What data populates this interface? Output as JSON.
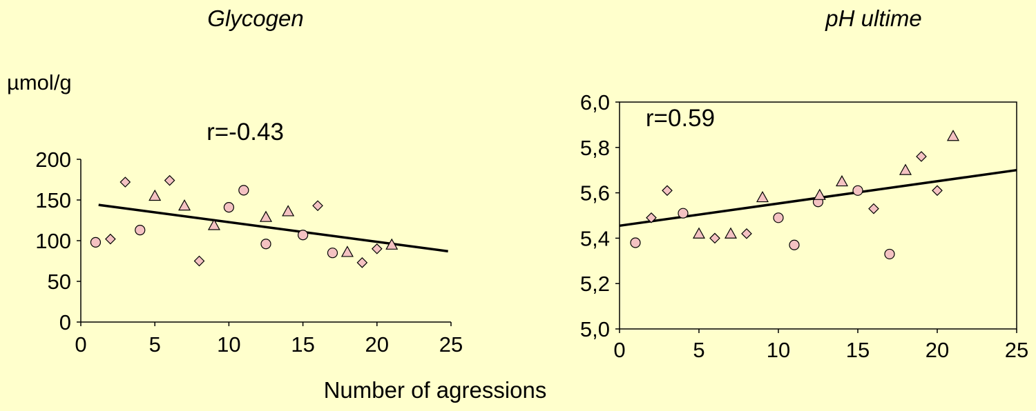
{
  "shared_xlabel": "Number of agressions",
  "chart_data": [
    {
      "type": "scatter",
      "title": "Glycogen",
      "ylabel": "µmol/g",
      "annotation": "r=-0.43",
      "xlim": [
        0,
        25
      ],
      "ylim": [
        0,
        200
      ],
      "xticks": [
        "0",
        "5",
        "10",
        "15",
        "20",
        "25"
      ],
      "yticks": [
        "0",
        "50",
        "100",
        "150",
        "200"
      ],
      "marker_color": "#f4c2c2",
      "points": [
        {
          "x": 1,
          "y": 98,
          "marker": "circle"
        },
        {
          "x": 2,
          "y": 102,
          "marker": "diamond"
        },
        {
          "x": 3,
          "y": 172,
          "marker": "diamond"
        },
        {
          "x": 4,
          "y": 113,
          "marker": "circle"
        },
        {
          "x": 5,
          "y": 155,
          "marker": "triangle"
        },
        {
          "x": 6,
          "y": 174,
          "marker": "diamond"
        },
        {
          "x": 7,
          "y": 143,
          "marker": "triangle"
        },
        {
          "x": 8,
          "y": 75,
          "marker": "diamond"
        },
        {
          "x": 9,
          "y": 119,
          "marker": "triangle"
        },
        {
          "x": 10,
          "y": 141,
          "marker": "circle"
        },
        {
          "x": 11,
          "y": 162,
          "marker": "circle"
        },
        {
          "x": 12.5,
          "y": 96,
          "marker": "circle"
        },
        {
          "x": 12.5,
          "y": 129,
          "marker": "triangle"
        },
        {
          "x": 14,
          "y": 136,
          "marker": "triangle"
        },
        {
          "x": 15,
          "y": 107,
          "marker": "circle"
        },
        {
          "x": 16,
          "y": 143,
          "marker": "diamond"
        },
        {
          "x": 17,
          "y": 85,
          "marker": "circle"
        },
        {
          "x": 18,
          "y": 86,
          "marker": "triangle"
        },
        {
          "x": 19,
          "y": 73,
          "marker": "diamond"
        },
        {
          "x": 20,
          "y": 90,
          "marker": "diamond"
        },
        {
          "x": 21,
          "y": 95,
          "marker": "triangle"
        }
      ],
      "trendline": {
        "x1": 1.2,
        "y1": 144,
        "x2": 24.8,
        "y2": 87
      }
    },
    {
      "type": "scatter",
      "title": "pH ultime",
      "ylabel": "",
      "annotation": "r=0.59",
      "xlim": [
        0,
        25
      ],
      "ylim": [
        5.0,
        6.0
      ],
      "xticks": [
        "0",
        "5",
        "10",
        "15",
        "20",
        "25"
      ],
      "yticks": [
        "5,0",
        "5,2",
        "5,4",
        "5,6",
        "5,8",
        "6,0"
      ],
      "marker_color": "#f4c2c2",
      "points": [
        {
          "x": 1,
          "y": 5.38,
          "marker": "circle"
        },
        {
          "x": 2,
          "y": 5.49,
          "marker": "diamond"
        },
        {
          "x": 3,
          "y": 5.61,
          "marker": "diamond"
        },
        {
          "x": 4,
          "y": 5.51,
          "marker": "circle"
        },
        {
          "x": 5,
          "y": 5.42,
          "marker": "triangle"
        },
        {
          "x": 6,
          "y": 5.4,
          "marker": "diamond"
        },
        {
          "x": 7,
          "y": 5.42,
          "marker": "triangle"
        },
        {
          "x": 8,
          "y": 5.42,
          "marker": "diamond"
        },
        {
          "x": 9,
          "y": 5.58,
          "marker": "triangle"
        },
        {
          "x": 10,
          "y": 5.49,
          "marker": "circle"
        },
        {
          "x": 11,
          "y": 5.37,
          "marker": "circle"
        },
        {
          "x": 12.5,
          "y": 5.56,
          "marker": "circle"
        },
        {
          "x": 12.6,
          "y": 5.59,
          "marker": "triangle"
        },
        {
          "x": 14,
          "y": 5.65,
          "marker": "triangle"
        },
        {
          "x": 15,
          "y": 5.61,
          "marker": "circle"
        },
        {
          "x": 16,
          "y": 5.53,
          "marker": "diamond"
        },
        {
          "x": 17,
          "y": 5.33,
          "marker": "circle"
        },
        {
          "x": 18,
          "y": 5.7,
          "marker": "triangle"
        },
        {
          "x": 19,
          "y": 5.76,
          "marker": "diamond"
        },
        {
          "x": 20,
          "y": 5.61,
          "marker": "diamond"
        },
        {
          "x": 21,
          "y": 5.85,
          "marker": "triangle"
        }
      ],
      "trendline": {
        "x1": 0,
        "y1": 5.455,
        "x2": 25,
        "y2": 5.7
      }
    }
  ]
}
